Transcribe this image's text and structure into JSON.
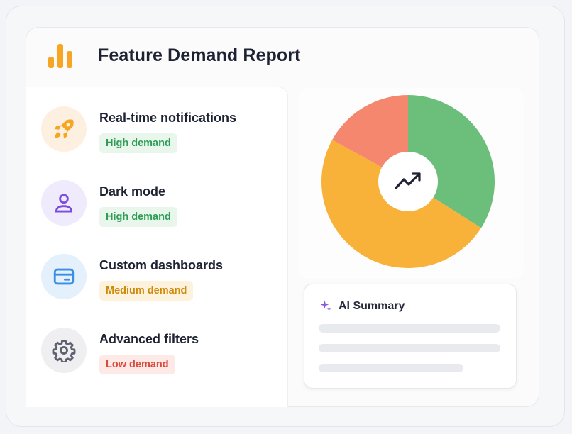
{
  "header": {
    "title": "Feature Demand Report",
    "logo_icon": "bar-chart-icon"
  },
  "colors": {
    "accent_orange": "#f6a623",
    "high": "#2f9e55",
    "high_bg": "#e8f6ec",
    "medium": "#cf8a0c",
    "medium_bg": "#fdf2dc",
    "low": "#d94b3d",
    "low_bg": "#fde9e6"
  },
  "features": [
    {
      "name": "Real-time notifications",
      "demand": "High demand",
      "level": "high",
      "icon": "rocket-icon"
    },
    {
      "name": "Dark mode",
      "demand": "High demand",
      "level": "high",
      "icon": "user-icon"
    },
    {
      "name": "Custom dashboards",
      "demand": "Medium demand",
      "level": "medium",
      "icon": "card-icon"
    },
    {
      "name": "Advanced filters",
      "demand": "Low demand",
      "level": "low",
      "icon": "gear-icon"
    }
  ],
  "chart_data": {
    "type": "pie",
    "center_icon": "trending-up-icon",
    "slices": [
      {
        "value": 34,
        "color": "#6bbf7a"
      },
      {
        "value": 49,
        "color": "#f8b23a"
      },
      {
        "value": 17,
        "color": "#f5876e"
      }
    ]
  },
  "summary": {
    "title": "AI Summary",
    "icon": "sparkle-icon"
  }
}
